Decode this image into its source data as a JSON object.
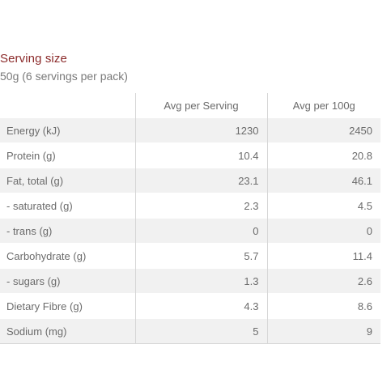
{
  "serving": {
    "title": "Serving size",
    "subtitle": "50g (6 servings per pack)"
  },
  "table": {
    "headers": [
      "",
      "Avg per Serving",
      "Avg per 100g"
    ],
    "rows": [
      {
        "name": "Energy (kJ)",
        "per_serving": "1230",
        "per_100g": "2450"
      },
      {
        "name": "Protein (g)",
        "per_serving": "10.4",
        "per_100g": "20.8"
      },
      {
        "name": "Fat, total (g)",
        "per_serving": "23.1",
        "per_100g": "46.1"
      },
      {
        "name": "- saturated (g)",
        "per_serving": "2.3",
        "per_100g": "4.5"
      },
      {
        "name": "- trans (g)",
        "per_serving": "0",
        "per_100g": "0"
      },
      {
        "name": "Carbohydrate (g)",
        "per_serving": "5.7",
        "per_100g": "11.4"
      },
      {
        "name": "- sugars (g)",
        "per_serving": "1.3",
        "per_100g": "2.6"
      },
      {
        "name": "Dietary Fibre (g)",
        "per_serving": "4.3",
        "per_100g": "8.6"
      },
      {
        "name": "Sodium (mg)",
        "per_serving": "5",
        "per_100g": "9"
      }
    ]
  },
  "colors": {
    "title": "#8b2a2a",
    "text": "#6b6b6b",
    "shade": "#f1f1f1",
    "divider": "#d6d6d6"
  }
}
